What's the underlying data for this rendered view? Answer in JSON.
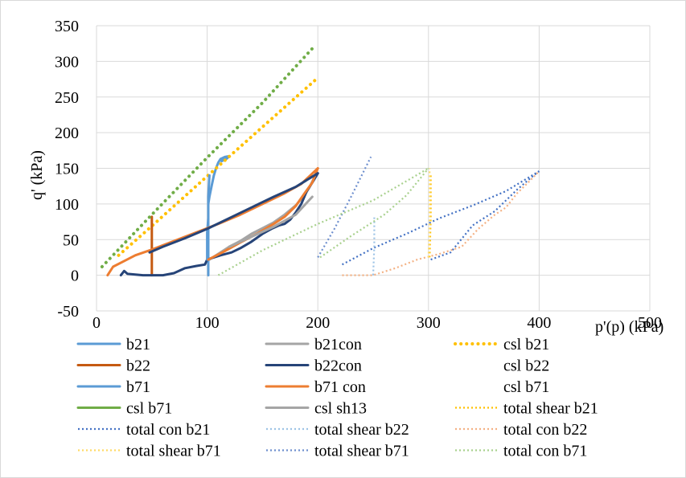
{
  "chart_data": {
    "type": "line",
    "xlabel": "p'(p) (kPa)",
    "ylabel": "q' (kPa)",
    "xlim": [
      0,
      500
    ],
    "ylim": [
      -50,
      350
    ],
    "xticks": [
      0,
      100,
      200,
      300,
      400,
      500
    ],
    "yticks": [
      -50,
      0,
      50,
      100,
      150,
      200,
      250,
      300,
      350
    ],
    "grid": true,
    "legend_position": "bottom",
    "series": [
      {
        "name": "b21",
        "color": "#5b9bd5",
        "style": "solid",
        "points": [
          [
            101,
            0
          ],
          [
            101,
            60
          ],
          [
            101,
            100
          ],
          [
            102,
            110
          ],
          [
            104,
            125
          ],
          [
            106,
            140
          ],
          [
            108,
            150
          ],
          [
            110,
            158
          ],
          [
            112,
            163
          ],
          [
            116,
            166
          ],
          [
            120,
            167
          ],
          [
            118,
            164
          ],
          [
            113,
            160
          ]
        ]
      },
      {
        "name": "b21con",
        "color": "#a5a5a5",
        "style": "solid",
        "points": [
          [
            102,
            22
          ],
          [
            110,
            30
          ],
          [
            120,
            40
          ],
          [
            130,
            48
          ],
          [
            140,
            58
          ],
          [
            150,
            66
          ],
          [
            160,
            74
          ],
          [
            170,
            85
          ],
          [
            180,
            98
          ],
          [
            188,
            112
          ],
          [
            193,
            125
          ],
          [
            197,
            138
          ],
          [
            199,
            146
          ]
        ]
      },
      {
        "name": "csl b21",
        "color": "#ffc000",
        "style": "dotted-thick",
        "points": [
          [
            20,
            28
          ],
          [
            50,
            69
          ],
          [
            100,
            139
          ],
          [
            150,
            208
          ],
          [
            200,
            277
          ]
        ]
      },
      {
        "name": "b22",
        "color": "#c55a11",
        "style": "solid",
        "points": [
          [
            50,
            0
          ],
          [
            50,
            20
          ],
          [
            50,
            40
          ],
          [
            50,
            60
          ],
          [
            50,
            82
          ]
        ]
      },
      {
        "name": "b22con",
        "color": "#264478",
        "style": "solid",
        "points": [
          [
            22,
            0
          ],
          [
            25,
            6
          ],
          [
            28,
            2
          ],
          [
            35,
            1
          ],
          [
            42,
            0
          ],
          [
            50,
            0
          ],
          [
            60,
            0
          ],
          [
            70,
            3
          ],
          [
            80,
            10
          ],
          [
            90,
            13
          ],
          [
            98,
            15
          ],
          [
            100,
            22
          ],
          [
            112,
            28
          ],
          [
            122,
            32
          ],
          [
            130,
            38
          ],
          [
            140,
            47
          ],
          [
            150,
            58
          ],
          [
            158,
            65
          ],
          [
            165,
            70
          ],
          [
            170,
            72
          ],
          [
            175,
            78
          ],
          [
            180,
            88
          ],
          [
            185,
            100
          ],
          [
            190,
            118
          ],
          [
            195,
            130
          ],
          [
            200,
            143
          ]
        ]
      },
      {
        "name": "b71",
        "color": "#5b9bd5",
        "style": "solid",
        "points": [
          [
            100,
            22
          ],
          [
            100,
            40
          ],
          [
            100,
            60
          ],
          [
            101,
            80
          ],
          [
            101,
            110
          ],
          [
            102,
            140
          ]
        ]
      },
      {
        "name": "b71 con",
        "color": "#ed7d31",
        "style": "solid",
        "points": [
          [
            10,
            0
          ],
          [
            15,
            12
          ],
          [
            25,
            20
          ],
          [
            35,
            28
          ],
          [
            50,
            36
          ],
          [
            70,
            48
          ],
          [
            90,
            60
          ],
          [
            110,
            72
          ],
          [
            130,
            85
          ],
          [
            150,
            100
          ],
          [
            170,
            115
          ],
          [
            185,
            128
          ],
          [
            200,
            150
          ]
        ]
      },
      {
        "name": "b71 con",
        "color": "#ed7d31",
        "style": "solid",
        "points": [
          [
            101,
            22
          ],
          [
            115,
            33
          ],
          [
            130,
            46
          ],
          [
            145,
            58
          ],
          [
            160,
            72
          ],
          [
            170,
            82
          ],
          [
            180,
            97
          ],
          [
            188,
            115
          ],
          [
            195,
            130
          ],
          [
            200,
            150
          ]
        ]
      },
      {
        "name": "b22con",
        "color": "#264478",
        "style": "solid",
        "points": [
          [
            48,
            32
          ],
          [
            60,
            40
          ],
          [
            80,
            52
          ],
          [
            100,
            65
          ],
          [
            120,
            80
          ],
          [
            140,
            95
          ],
          [
            160,
            110
          ],
          [
            180,
            124
          ],
          [
            200,
            143
          ]
        ]
      },
      {
        "name": "csl b71",
        "color": "#70ad47",
        "style": "dotted-thick",
        "points": [
          [
            5,
            12
          ],
          [
            50,
            85
          ],
          [
            100,
            165
          ],
          [
            150,
            242
          ],
          [
            195,
            318
          ]
        ]
      },
      {
        "name": "csl sh13",
        "color": "#a5a5a5",
        "style": "solid",
        "points": [
          [
            120,
            40
          ],
          [
            140,
            54
          ],
          [
            160,
            68
          ],
          [
            180,
            85
          ],
          [
            195,
            110
          ]
        ]
      },
      {
        "name": "total shear b21",
        "color": "#ffc000",
        "style": "dotted",
        "points": [
          [
            301,
            25
          ],
          [
            302,
            80
          ],
          [
            302,
            120
          ],
          [
            302,
            142
          ]
        ]
      },
      {
        "name": "total con b21",
        "color": "#4472c4",
        "style": "dotted",
        "points": [
          [
            222,
            15
          ],
          [
            250,
            38
          ],
          [
            280,
            58
          ],
          [
            310,
            80
          ],
          [
            340,
            98
          ],
          [
            370,
            118
          ],
          [
            400,
            146
          ]
        ]
      },
      {
        "name": "total con b21",
        "color": "#4472c4",
        "style": "dotted",
        "points": [
          [
            302,
            22
          ],
          [
            320,
            32
          ],
          [
            340,
            70
          ],
          [
            360,
            90
          ],
          [
            380,
            120
          ],
          [
            395,
            140
          ],
          [
            400,
            146
          ]
        ]
      },
      {
        "name": "total shear b22",
        "color": "#9dc3e6",
        "style": "dotted",
        "points": [
          [
            250,
            0
          ],
          [
            251,
            40
          ],
          [
            251,
            82
          ]
        ]
      },
      {
        "name": "total con b22",
        "color": "#f4b183",
        "style": "dotted",
        "points": [
          [
            222,
            0
          ],
          [
            250,
            0
          ],
          [
            270,
            10
          ],
          [
            290,
            22
          ],
          [
            310,
            30
          ],
          [
            330,
            40
          ],
          [
            345,
            65
          ],
          [
            360,
            85
          ],
          [
            370,
            95
          ],
          [
            380,
            115
          ],
          [
            390,
            130
          ],
          [
            400,
            146
          ]
        ]
      },
      {
        "name": "total shear b71",
        "color": "#ffd966",
        "style": "dotted",
        "points": [
          [
            300,
            25
          ],
          [
            301,
            70
          ],
          [
            301,
            120
          ],
          [
            301,
            150
          ]
        ]
      },
      {
        "name": "total shear b71",
        "color": "#6e8fce",
        "style": "dotted",
        "points": [
          [
            200,
            25
          ],
          [
            215,
            65
          ],
          [
            230,
            110
          ],
          [
            248,
            166
          ]
        ]
      },
      {
        "name": "total con b71",
        "color": "#a9d18e",
        "style": "dotted",
        "points": [
          [
            110,
            0
          ],
          [
            150,
            35
          ],
          [
            200,
            72
          ],
          [
            250,
            105
          ],
          [
            300,
            150
          ]
        ]
      },
      {
        "name": "total con b71",
        "color": "#a9d18e",
        "style": "dotted",
        "points": [
          [
            202,
            25
          ],
          [
            230,
            55
          ],
          [
            260,
            85
          ],
          [
            280,
            112
          ],
          [
            300,
            150
          ]
        ]
      }
    ]
  },
  "legend": [
    {
      "label": "b21",
      "color": "#5b9bd5",
      "style": "solid"
    },
    {
      "label": "b21con",
      "color": "#a5a5a5",
      "style": "solid"
    },
    {
      "label": "csl b21",
      "color": "#ffc000",
      "style": "dotted-thick"
    },
    {
      "label": "b22",
      "color": "#c55a11",
      "style": "solid"
    },
    {
      "label": "b22con",
      "color": "#264478",
      "style": "solid"
    },
    {
      "label": "csl b22",
      "color": "",
      "style": "none"
    },
    {
      "label": "b71",
      "color": "#5b9bd5",
      "style": "solid"
    },
    {
      "label": "b71 con",
      "color": "#ed7d31",
      "style": "solid"
    },
    {
      "label": "csl b71",
      "color": "",
      "style": "none"
    },
    {
      "label": "csl b71",
      "color": "#70ad47",
      "style": "solid"
    },
    {
      "label": "csl sh13",
      "color": "#a5a5a5",
      "style": "solid"
    },
    {
      "label": "total shear b21",
      "color": "#ffc000",
      "style": "dotted"
    },
    {
      "label": "total con b21",
      "color": "#4472c4",
      "style": "dotted"
    },
    {
      "label": "total shear b22",
      "color": "#9dc3e6",
      "style": "dotted"
    },
    {
      "label": "total con b22",
      "color": "#f4b183",
      "style": "dotted"
    },
    {
      "label": "total shear b71",
      "color": "#ffd966",
      "style": "dotted"
    },
    {
      "label": "total shear b71",
      "color": "#6e8fce",
      "style": "dotted"
    },
    {
      "label": "total con b71",
      "color": "#a9d18e",
      "style": "dotted"
    }
  ]
}
